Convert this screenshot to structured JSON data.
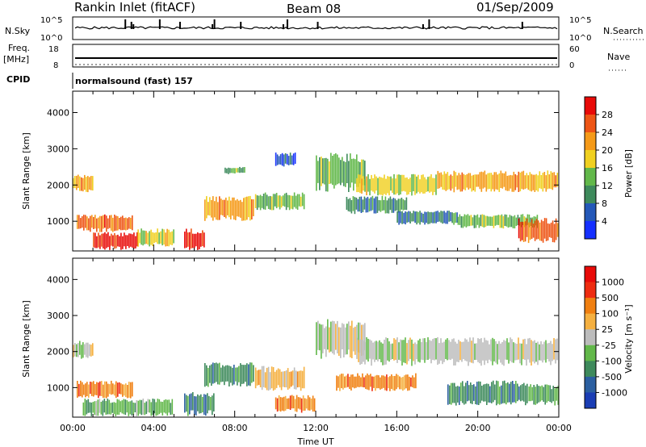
{
  "header": {
    "station": "Rankin Inlet (fitACF)",
    "beam": "Beam 08",
    "date": "01/Sep/2009"
  },
  "top_panel": {
    "left_label": "N.Sky",
    "right_label": "N.Search",
    "left_ticks": [
      "10^5",
      "10^0"
    ],
    "right_ticks": [
      "10^5",
      "10^0"
    ]
  },
  "freq_panel": {
    "left_label_1": "Freq.",
    "left_label_2": "[MHz]",
    "right_label": "Nave",
    "left_ticks": [
      "18",
      "8"
    ],
    "right_ticks": [
      "60",
      "0"
    ]
  },
  "cpid": {
    "label": "CPID",
    "text": "normalsound (fast) 157"
  },
  "chart_data": [
    {
      "type": "heatmap",
      "quantity": "power",
      "ylabel": "Slant Range [km]",
      "xlabel": "",
      "xlim": [
        "00:00",
        "00:00"
      ],
      "ylim": [
        180,
        4590
      ],
      "yticks": [
        1000,
        2000,
        3000,
        4000
      ],
      "colorbar_label": "Power [dB]",
      "colorbar_ticks": [
        "4",
        "8",
        "12",
        "16",
        "20",
        "24",
        "28"
      ],
      "colorscale": [
        "#1530ff",
        "#2458b8",
        "#3e8a5c",
        "#62b84a",
        "#f0d020",
        "#f59a18",
        "#ee5515",
        "#e80a08"
      ],
      "cells": [
        {
          "t0": 0.0,
          "t1": 1.0,
          "r0": 1800,
          "r1": 2300,
          "level": 5
        },
        {
          "t0": 0.2,
          "t1": 3.0,
          "r0": 700,
          "r1": 1200,
          "level": 6
        },
        {
          "t0": 1.0,
          "t1": 3.2,
          "r0": 200,
          "r1": 700,
          "level": 7
        },
        {
          "t0": 3.2,
          "t1": 5.0,
          "r0": 300,
          "r1": 800,
          "level": 4
        },
        {
          "t0": 5.5,
          "t1": 6.5,
          "r0": 200,
          "r1": 800,
          "level": 7
        },
        {
          "t0": 6.5,
          "t1": 9.0,
          "r0": 1000,
          "r1": 1700,
          "level": 5
        },
        {
          "t0": 7.5,
          "t1": 8.5,
          "r0": 2300,
          "r1": 2500,
          "level": 3
        },
        {
          "t0": 9.0,
          "t1": 11.5,
          "r0": 1300,
          "r1": 1800,
          "level": 3
        },
        {
          "t0": 10.0,
          "t1": 11.0,
          "r0": 2500,
          "r1": 2900,
          "level": 1
        },
        {
          "t0": 12.0,
          "t1": 14.5,
          "r0": 1800,
          "r1": 2900,
          "level": 3
        },
        {
          "t0": 14.0,
          "t1": 18.0,
          "r0": 1700,
          "r1": 2300,
          "level": 4
        },
        {
          "t0": 13.5,
          "t1": 16.5,
          "r0": 1200,
          "r1": 1700,
          "level": 2
        },
        {
          "t0": 16.0,
          "t1": 19.0,
          "r0": 900,
          "r1": 1300,
          "level": 2
        },
        {
          "t0": 18.0,
          "t1": 24.0,
          "r0": 1800,
          "r1": 2400,
          "level": 5
        },
        {
          "t0": 19.0,
          "t1": 23.0,
          "r0": 800,
          "r1": 1200,
          "level": 3
        },
        {
          "t0": 22.0,
          "t1": 24.0,
          "r0": 400,
          "r1": 1100,
          "level": 6
        }
      ]
    },
    {
      "type": "heatmap",
      "quantity": "velocity",
      "ylabel": "Slant Range [km]",
      "xlabel": "Time UT",
      "xlim": [
        "00:00",
        "00:00"
      ],
      "ylim": [
        180,
        4590
      ],
      "yticks": [
        1000,
        2000,
        3000,
        4000
      ],
      "xticks": [
        "00:00",
        "04:00",
        "08:00",
        "12:00",
        "16:00",
        "20:00",
        "00:00"
      ],
      "colorbar_label": "Velocity [m s⁻¹]",
      "colorbar_ticks": [
        "1000",
        "500",
        "100",
        "25",
        "-25",
        "-100",
        "-500",
        "-1000"
      ],
      "colorscale": [
        "#1a3db4",
        "#2b5fa0",
        "#3e8a5c",
        "#62b84a",
        "#bcbcbc",
        "#f5b040",
        "#f07f10",
        "#ee2c10",
        "#e80a08"
      ],
      "cells": [
        {
          "t0": 0.0,
          "t1": 1.0,
          "r0": 1800,
          "r1": 2300,
          "level": 4
        },
        {
          "t0": 0.2,
          "t1": 3.0,
          "r0": 700,
          "r1": 1200,
          "level": 6
        },
        {
          "t0": 0.5,
          "t1": 5.0,
          "r0": 200,
          "r1": 700,
          "level": 3
        },
        {
          "t0": 5.5,
          "t1": 7.0,
          "r0": 200,
          "r1": 900,
          "level": 2
        },
        {
          "t0": 6.5,
          "t1": 9.0,
          "r0": 1000,
          "r1": 1700,
          "level": 2
        },
        {
          "t0": 9.0,
          "t1": 11.5,
          "r0": 900,
          "r1": 1600,
          "level": 5
        },
        {
          "t0": 10.0,
          "t1": 12.0,
          "r0": 300,
          "r1": 800,
          "level": 6
        },
        {
          "t0": 12.0,
          "t1": 14.5,
          "r0": 1800,
          "r1": 2900,
          "level": 4
        },
        {
          "t0": 14.0,
          "t1": 24.0,
          "r0": 1600,
          "r1": 2400,
          "level": 4
        },
        {
          "t0": 13.0,
          "t1": 17.0,
          "r0": 900,
          "r1": 1400,
          "level": 6
        },
        {
          "t0": 18.5,
          "t1": 22.5,
          "r0": 500,
          "r1": 1200,
          "level": 2
        },
        {
          "t0": 22.5,
          "t1": 24.0,
          "r0": 500,
          "r1": 1100,
          "level": 3
        }
      ]
    }
  ]
}
